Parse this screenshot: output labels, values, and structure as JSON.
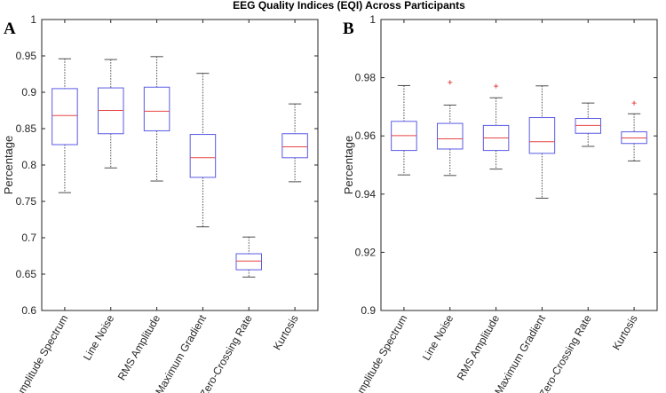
{
  "chart_data": {
    "title": "EEG Quality Indices (EQI) Across Participants",
    "type": "box",
    "categories": [
      "Amplitude Spectrum",
      "Line Noise",
      "RMS Amplitude",
      "Maximum Gradient",
      "Zero-Crossing Rate",
      "Kurtosis"
    ],
    "colors": {
      "box": "#5a5ae6",
      "median": "#e64646",
      "whisker": "#4d4d4d",
      "outlier": "#e64646",
      "axis": "#262626"
    },
    "panels": [
      {
        "label": "A",
        "ylabel": "Percentage",
        "ylim": [
          0.6,
          1.0
        ],
        "yticks": [
          0.6,
          0.65,
          0.7,
          0.75,
          0.8,
          0.85,
          0.9,
          0.95,
          1.0
        ],
        "ytick_labels": [
          "0.6",
          "0.65",
          "0.7",
          "0.75",
          "0.8",
          "0.85",
          "0.9",
          "0.95",
          "1"
        ],
        "boxes": [
          {
            "min": 0.762,
            "q1": 0.828,
            "median": 0.868,
            "q3": 0.905,
            "max": 0.946,
            "outliers": []
          },
          {
            "min": 0.796,
            "q1": 0.843,
            "median": 0.875,
            "q3": 0.906,
            "max": 0.945,
            "outliers": []
          },
          {
            "min": 0.778,
            "q1": 0.847,
            "median": 0.874,
            "q3": 0.907,
            "max": 0.949,
            "outliers": []
          },
          {
            "min": 0.715,
            "q1": 0.783,
            "median": 0.81,
            "q3": 0.842,
            "max": 0.926,
            "outliers": []
          },
          {
            "min": 0.646,
            "q1": 0.656,
            "median": 0.668,
            "q3": 0.678,
            "max": 0.701,
            "outliers": []
          },
          {
            "min": 0.777,
            "q1": 0.81,
            "median": 0.825,
            "q3": 0.843,
            "max": 0.884,
            "outliers": []
          }
        ]
      },
      {
        "label": "B",
        "ylabel": "Percentage",
        "ylim": [
          0.9,
          1.0
        ],
        "yticks": [
          0.9,
          0.92,
          0.94,
          0.96,
          0.98,
          1.0
        ],
        "ytick_labels": [
          "0.9",
          "0.92",
          "0.94",
          "0.96",
          "0.98",
          "1"
        ],
        "boxes": [
          {
            "min": 0.9466,
            "q1": 0.955,
            "median": 0.9601,
            "q3": 0.965,
            "max": 0.9773,
            "outliers": []
          },
          {
            "min": 0.9464,
            "q1": 0.9555,
            "median": 0.959,
            "q3": 0.9643,
            "max": 0.9706,
            "outliers": [
              0.9784
            ]
          },
          {
            "min": 0.9486,
            "q1": 0.955,
            "median": 0.9593,
            "q3": 0.9636,
            "max": 0.9731,
            "outliers": [
              0.9771
            ]
          },
          {
            "min": 0.9386,
            "q1": 0.954,
            "median": 0.958,
            "q3": 0.9663,
            "max": 0.9772,
            "outliers": []
          },
          {
            "min": 0.9564,
            "q1": 0.9609,
            "median": 0.9636,
            "q3": 0.966,
            "max": 0.9713,
            "outliers": []
          },
          {
            "min": 0.9514,
            "q1": 0.9574,
            "median": 0.9593,
            "q3": 0.9614,
            "max": 0.9676,
            "outliers": [
              0.9713
            ]
          }
        ]
      }
    ]
  }
}
